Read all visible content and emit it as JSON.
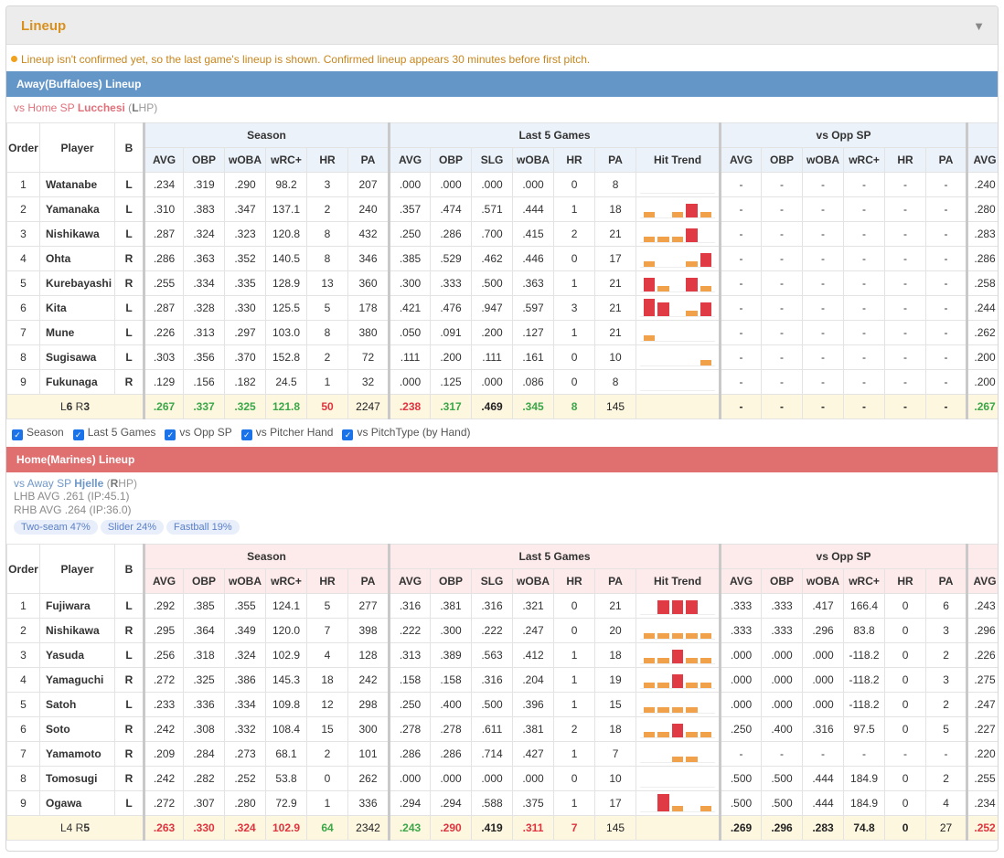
{
  "panel": {
    "title": "Lineup",
    "notice": "Lineup isn't confirmed yet, so the last game's lineup is shown. Confirmed lineup appears 30 minutes before first pitch."
  },
  "headers": {
    "order": "Order",
    "player": "Player",
    "bats": "B",
    "season": "Season",
    "last5": "Last 5 Games",
    "vsopp": "vs Opp SP",
    "avg": "AVG",
    "obp": "OBP",
    "woba": "wOBA",
    "wrc": "wRC+",
    "hr": "HR",
    "pa": "PA",
    "slg": "SLG",
    "trend": "Hit Trend"
  },
  "filters": [
    "Season",
    "Last 5 Games",
    "vs Opp SP",
    "vs Pitcher Hand",
    "vs PitchType (by Hand)"
  ],
  "away": {
    "title": "Away(Buffaloes) Lineup",
    "sp_prefix": "vs Home SP ",
    "sp_name": "Lucchesi",
    "sp_hand_open": " (",
    "sp_hand": "L",
    "sp_hand_rest": "HP)",
    "players": [
      {
        "order": "1",
        "name": "Watanabe",
        "b": "L",
        "s": [
          ".234",
          ".319",
          ".290",
          "98.2",
          "3",
          "207"
        ],
        "l": [
          ".000",
          ".000",
          ".000",
          ".000",
          "0",
          "8"
        ],
        "trend": [
          0,
          0,
          0,
          0,
          0
        ],
        "o": [
          "-",
          "-",
          "-",
          "-",
          "-",
          "-"
        ],
        "x": ".240"
      },
      {
        "order": "2",
        "name": "Yamanaka",
        "b": "L",
        "s": [
          ".310",
          ".383",
          ".347",
          "137.1",
          "2",
          "240"
        ],
        "l": [
          ".357",
          ".474",
          ".571",
          ".444",
          "1",
          "18"
        ],
        "trend": [
          1,
          0,
          1,
          3,
          1
        ],
        "o": [
          "-",
          "-",
          "-",
          "-",
          "-",
          "-"
        ],
        "x": ".280"
      },
      {
        "order": "3",
        "name": "Nishikawa",
        "b": "L",
        "s": [
          ".287",
          ".324",
          ".323",
          "120.8",
          "8",
          "432"
        ],
        "l": [
          ".250",
          ".286",
          ".700",
          ".415",
          "2",
          "21"
        ],
        "trend": [
          1,
          1,
          1,
          3,
          0
        ],
        "o": [
          "-",
          "-",
          "-",
          "-",
          "-",
          "-"
        ],
        "x": ".283"
      },
      {
        "order": "4",
        "name": "Ohta",
        "b": "R",
        "s": [
          ".286",
          ".363",
          ".352",
          "140.5",
          "8",
          "346"
        ],
        "l": [
          ".385",
          ".529",
          ".462",
          ".446",
          "0",
          "17"
        ],
        "trend": [
          1,
          0,
          0,
          1,
          3
        ],
        "o": [
          "-",
          "-",
          "-",
          "-",
          "-",
          "-"
        ],
        "x": ".286"
      },
      {
        "order": "5",
        "name": "Kurebayashi",
        "b": "R",
        "s": [
          ".255",
          ".334",
          ".335",
          "128.9",
          "13",
          "360"
        ],
        "l": [
          ".300",
          ".333",
          ".500",
          ".363",
          "1",
          "21"
        ],
        "trend": [
          3,
          1,
          0,
          3,
          1
        ],
        "o": [
          "-",
          "-",
          "-",
          "-",
          "-",
          "-"
        ],
        "x": ".258"
      },
      {
        "order": "6",
        "name": "Kita",
        "b": "L",
        "s": [
          ".287",
          ".328",
          ".330",
          "125.5",
          "5",
          "178"
        ],
        "l": [
          ".421",
          ".476",
          ".947",
          ".597",
          "3",
          "21"
        ],
        "trend": [
          4,
          3,
          0,
          1,
          3
        ],
        "o": [
          "-",
          "-",
          "-",
          "-",
          "-",
          "-"
        ],
        "x": ".244"
      },
      {
        "order": "7",
        "name": "Mune",
        "b": "L",
        "s": [
          ".226",
          ".313",
          ".297",
          "103.0",
          "8",
          "380"
        ],
        "l": [
          ".050",
          ".091",
          ".200",
          ".127",
          "1",
          "21"
        ],
        "trend": [
          1,
          0,
          0,
          0,
          0
        ],
        "o": [
          "-",
          "-",
          "-",
          "-",
          "-",
          "-"
        ],
        "x": ".262"
      },
      {
        "order": "8",
        "name": "Sugisawa",
        "b": "L",
        "s": [
          ".303",
          ".356",
          ".370",
          "152.8",
          "2",
          "72"
        ],
        "l": [
          ".111",
          ".200",
          ".111",
          ".161",
          "0",
          "10"
        ],
        "trend": [
          0,
          0,
          0,
          0,
          1
        ],
        "o": [
          "-",
          "-",
          "-",
          "-",
          "-",
          "-"
        ],
        "x": ".200"
      },
      {
        "order": "9",
        "name": "Fukunaga",
        "b": "R",
        "s": [
          ".129",
          ".156",
          ".182",
          "24.5",
          "1",
          "32"
        ],
        "l": [
          ".000",
          ".125",
          ".000",
          ".086",
          "0",
          "8"
        ],
        "trend": [
          0,
          0,
          0,
          0,
          0
        ],
        "o": [
          "-",
          "-",
          "-",
          "-",
          "-",
          "-"
        ],
        "x": ".200"
      }
    ],
    "total": {
      "l_prefix": "L",
      "l_val": "6",
      "r_prefix": " R",
      "r_val": "3",
      "s": [
        ".267",
        ".337",
        ".325",
        "121.8",
        "50",
        "2247"
      ],
      "l": [
        ".238",
        ".317",
        ".469",
        ".345",
        "8",
        "145"
      ],
      "o": [
        "-",
        "-",
        "-",
        "-",
        "-",
        "-"
      ],
      "x": ".267"
    }
  },
  "home": {
    "title": "Home(Marines) Lineup",
    "sp_prefix": "vs Away SP ",
    "sp_name": "Hjelle",
    "sp_hand_open": " (",
    "sp_hand": "R",
    "sp_hand_rest": "HP)",
    "lhb": "LHB AVG .261 (IP:45.1)",
    "rhb": "RHB AVG .264 (IP:36.0)",
    "pitches": [
      "Two-seam 47%",
      "Slider 24%",
      "Fastball 19%"
    ],
    "players": [
      {
        "order": "1",
        "name": "Fujiwara",
        "b": "L",
        "s": [
          ".292",
          ".385",
          ".355",
          "124.1",
          "5",
          "277"
        ],
        "l": [
          ".316",
          ".381",
          ".316",
          ".321",
          "0",
          "21"
        ],
        "trend": [
          0,
          3,
          3,
          3,
          0
        ],
        "o": [
          ".333",
          ".333",
          ".417",
          "166.4",
          "0",
          "6"
        ],
        "x": ".243"
      },
      {
        "order": "2",
        "name": "Nishikawa",
        "b": "R",
        "s": [
          ".295",
          ".364",
          ".349",
          "120.0",
          "7",
          "398"
        ],
        "l": [
          ".222",
          ".300",
          ".222",
          ".247",
          "0",
          "20"
        ],
        "trend": [
          1,
          1,
          1,
          1,
          1
        ],
        "o": [
          ".333",
          ".333",
          ".296",
          "83.8",
          "0",
          "3"
        ],
        "x": ".296"
      },
      {
        "order": "3",
        "name": "Yasuda",
        "b": "L",
        "s": [
          ".256",
          ".318",
          ".324",
          "102.9",
          "4",
          "128"
        ],
        "l": [
          ".313",
          ".389",
          ".563",
          ".412",
          "1",
          "18"
        ],
        "trend": [
          1,
          1,
          3,
          1,
          1
        ],
        "o": [
          ".000",
          ".000",
          ".000",
          "-118.2",
          "0",
          "2"
        ],
        "x": ".226"
      },
      {
        "order": "4",
        "name": "Yamaguchi",
        "b": "R",
        "s": [
          ".272",
          ".325",
          ".386",
          "145.3",
          "18",
          "242"
        ],
        "l": [
          ".158",
          ".158",
          ".316",
          ".204",
          "1",
          "19"
        ],
        "trend": [
          1,
          1,
          3,
          1,
          1
        ],
        "o": [
          ".000",
          ".000",
          ".000",
          "-118.2",
          "0",
          "3"
        ],
        "x": ".275"
      },
      {
        "order": "5",
        "name": "Satoh",
        "b": "L",
        "s": [
          ".233",
          ".336",
          ".334",
          "109.8",
          "12",
          "298"
        ],
        "l": [
          ".250",
          ".400",
          ".500",
          ".396",
          "1",
          "15"
        ],
        "trend": [
          1,
          1,
          1,
          1,
          0
        ],
        "o": [
          ".000",
          ".000",
          ".000",
          "-118.2",
          "0",
          "2"
        ],
        "x": ".247"
      },
      {
        "order": "6",
        "name": "Soto",
        "b": "R",
        "s": [
          ".242",
          ".308",
          ".332",
          "108.4",
          "15",
          "300"
        ],
        "l": [
          ".278",
          ".278",
          ".611",
          ".381",
          "2",
          "18"
        ],
        "trend": [
          1,
          1,
          3,
          1,
          1
        ],
        "o": [
          ".250",
          ".400",
          ".316",
          "97.5",
          "0",
          "5"
        ],
        "x": ".227"
      },
      {
        "order": "7",
        "name": "Yamamoto",
        "b": "R",
        "s": [
          ".209",
          ".284",
          ".273",
          "68.1",
          "2",
          "101"
        ],
        "l": [
          ".286",
          ".286",
          ".714",
          ".427",
          "1",
          "7"
        ],
        "trend": [
          0,
          0,
          1,
          1,
          0
        ],
        "o": [
          "-",
          "-",
          "-",
          "-",
          "-",
          "-"
        ],
        "x": ".220"
      },
      {
        "order": "8",
        "name": "Tomosugi",
        "b": "R",
        "s": [
          ".242",
          ".282",
          ".252",
          "53.8",
          "0",
          "262"
        ],
        "l": [
          ".000",
          ".000",
          ".000",
          ".000",
          "0",
          "10"
        ],
        "trend": [
          0,
          0,
          0,
          0,
          0
        ],
        "o": [
          ".500",
          ".500",
          ".444",
          "184.9",
          "0",
          "2"
        ],
        "x": ".255"
      },
      {
        "order": "9",
        "name": "Ogawa",
        "b": "L",
        "s": [
          ".272",
          ".307",
          ".280",
          "72.9",
          "1",
          "336"
        ],
        "l": [
          ".294",
          ".294",
          ".588",
          ".375",
          "1",
          "17"
        ],
        "trend": [
          0,
          4,
          1,
          0,
          1
        ],
        "o": [
          ".500",
          ".500",
          ".444",
          "184.9",
          "0",
          "4"
        ],
        "x": ".234"
      }
    ],
    "total": {
      "l_prefix": "L4",
      "l_val": "",
      "r_prefix": " R",
      "r_val": "5",
      "s": [
        ".263",
        ".330",
        ".324",
        "102.9",
        "64",
        "2342"
      ],
      "l": [
        ".243",
        ".290",
        ".419",
        ".311",
        "7",
        "145"
      ],
      "o": [
        ".269",
        ".296",
        ".283",
        "74.8",
        "0",
        "27"
      ],
      "x": ".252"
    }
  }
}
